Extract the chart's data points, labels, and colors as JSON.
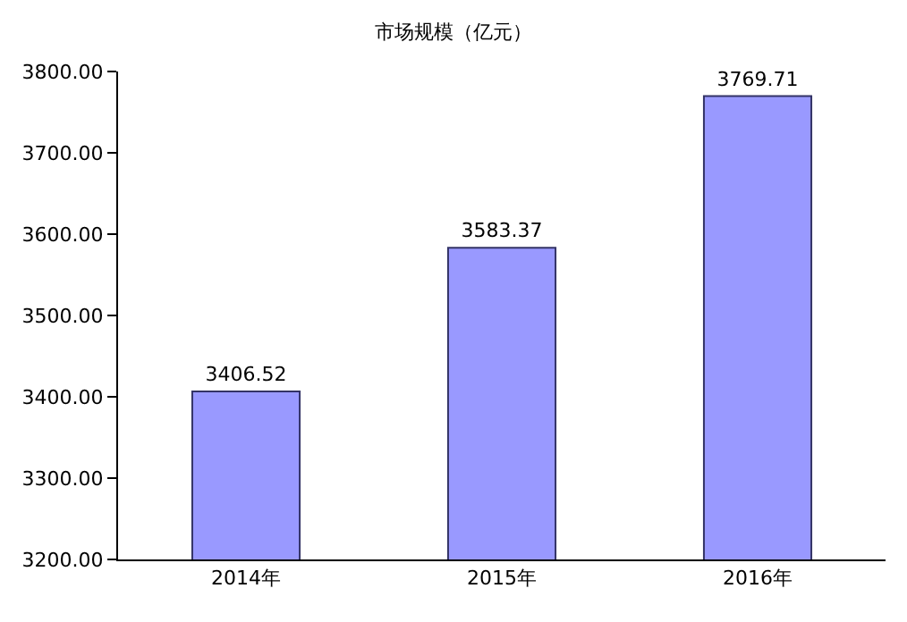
{
  "chart_data": {
    "type": "bar",
    "title": "市场规模（亿元）",
    "categories": [
      "2014年",
      "2015年",
      "2016年"
    ],
    "values": [
      3406.52,
      3583.37,
      3769.71
    ],
    "color": "#9999ff",
    "ylim": [
      3200,
      3800
    ],
    "yticks": [
      {
        "value": 3200,
        "label": "3200.00"
      },
      {
        "value": 3300,
        "label": "3300.00"
      },
      {
        "value": 3400,
        "label": "3400.00"
      },
      {
        "value": 3500,
        "label": "3500.00"
      },
      {
        "value": 3600,
        "label": "3600.00"
      },
      {
        "value": 3700,
        "label": "3700.00"
      },
      {
        "value": 3800,
        "label": "3800.00"
      }
    ],
    "data_labels": true
  }
}
